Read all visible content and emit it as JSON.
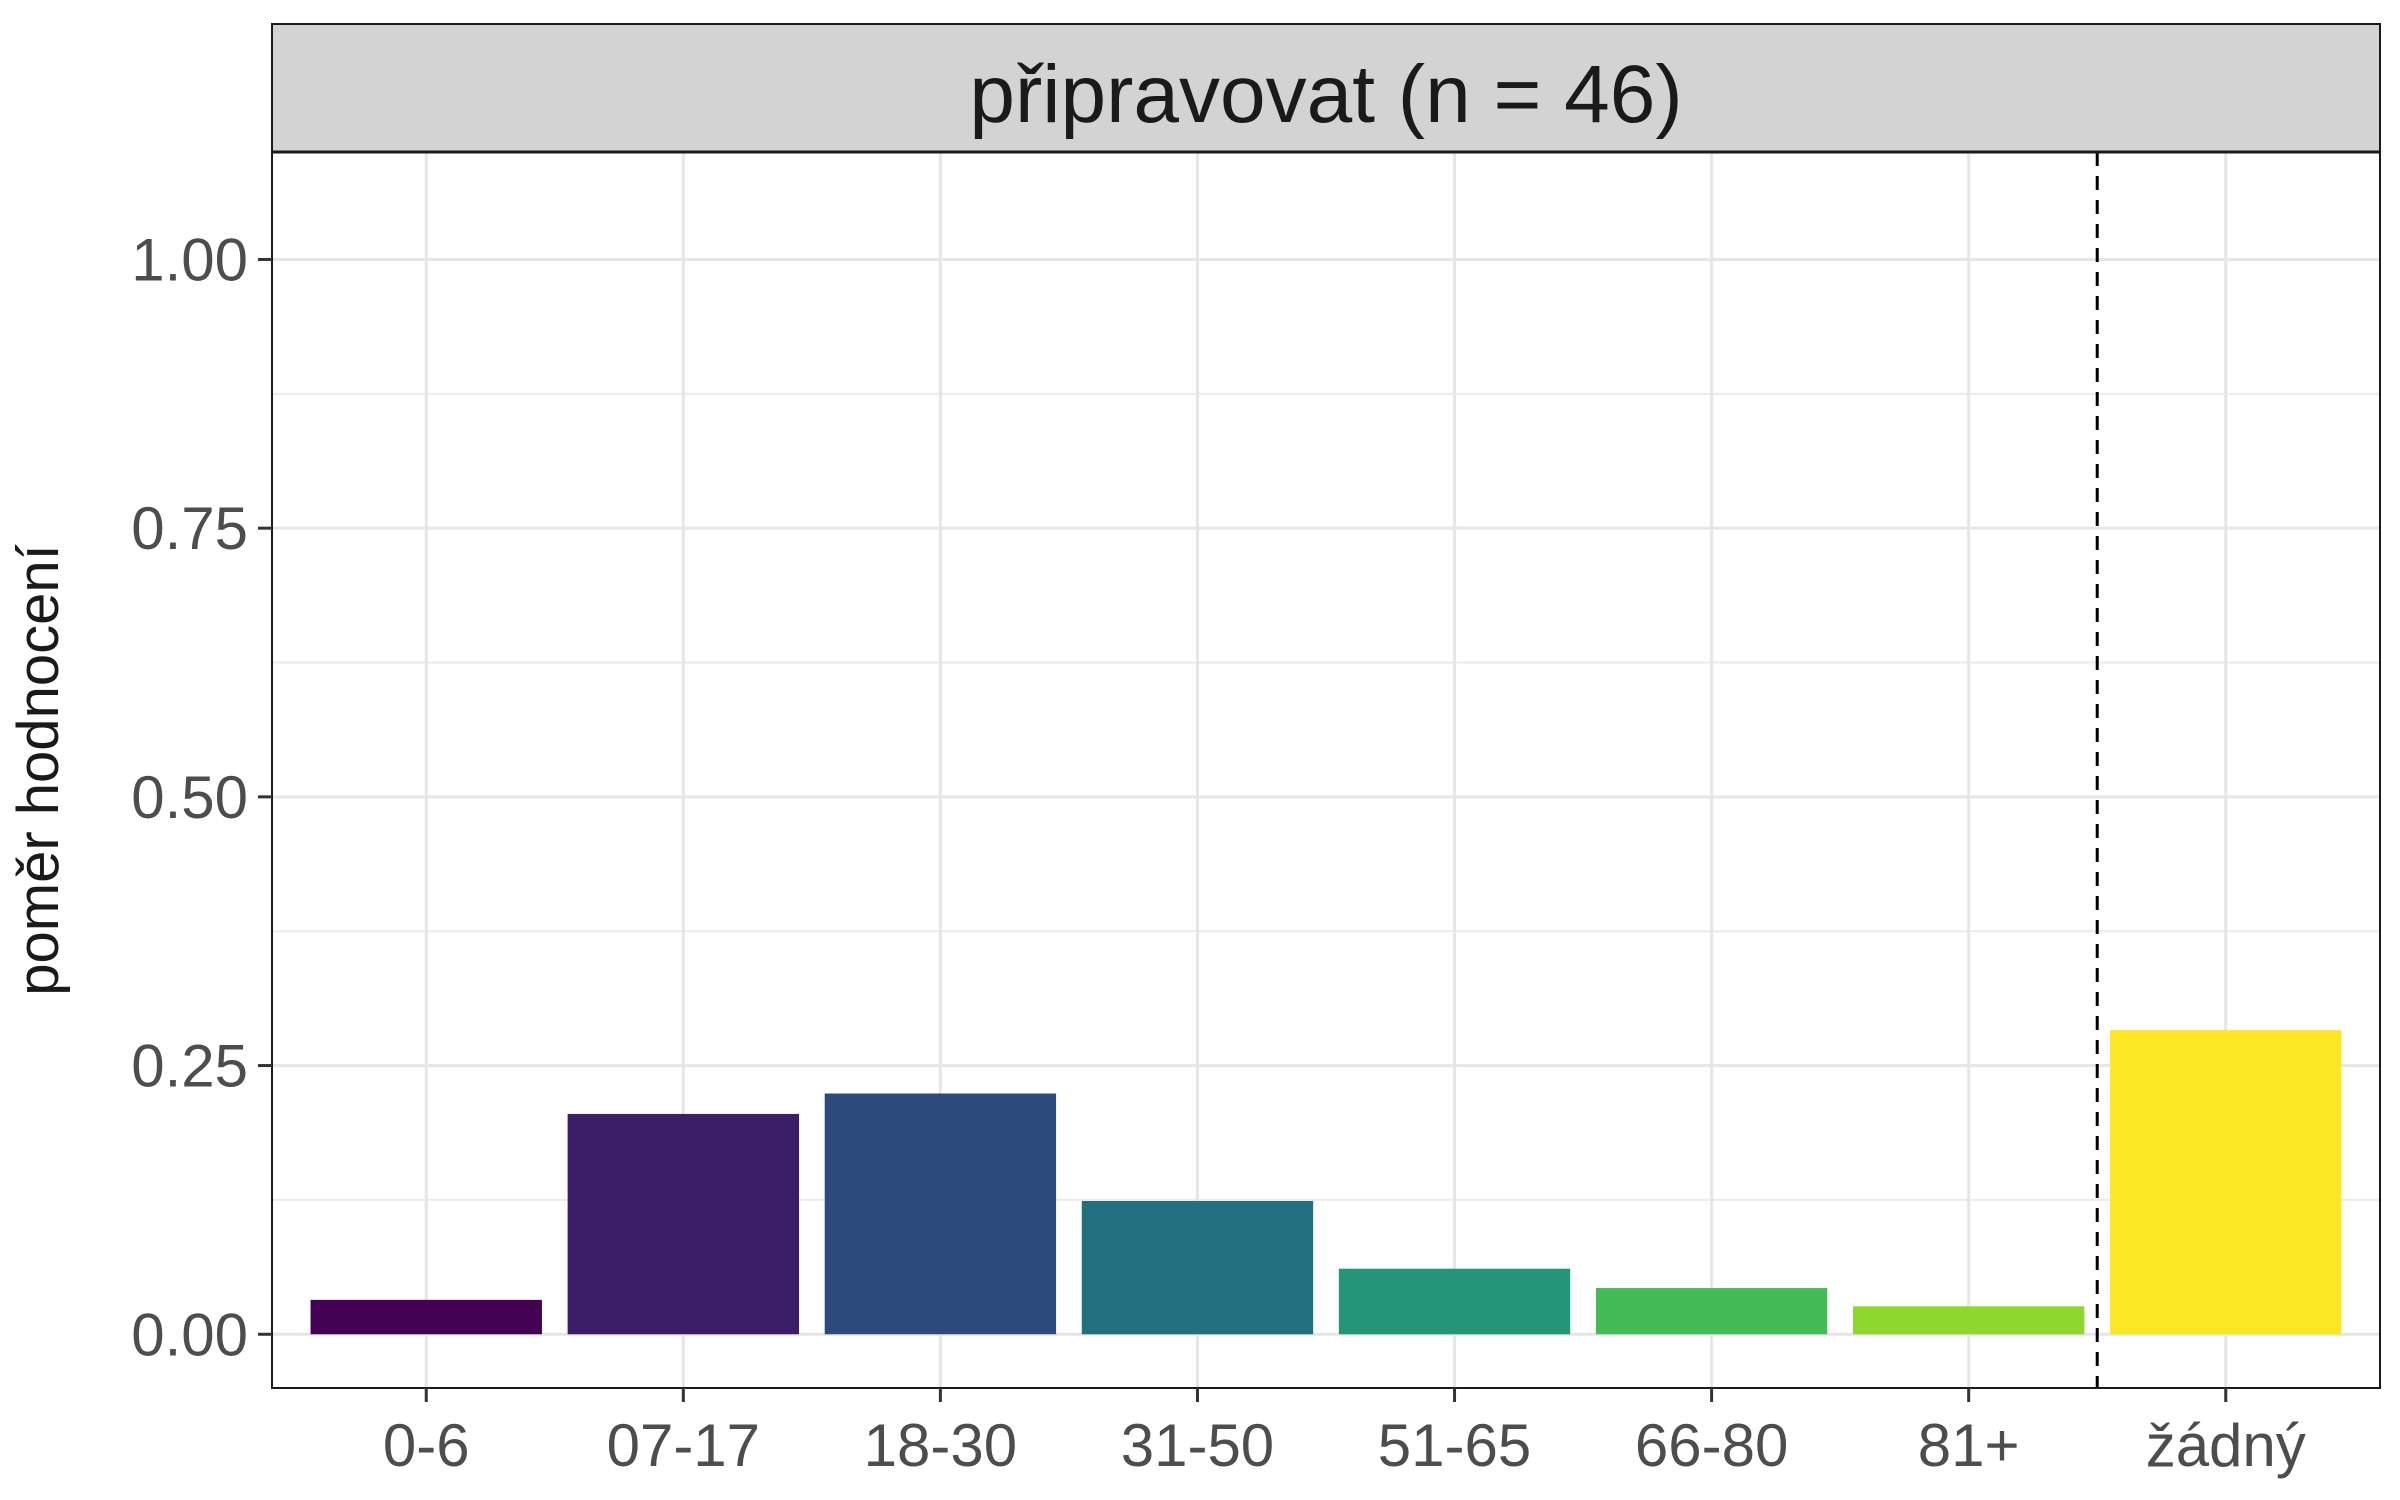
{
  "chart_data": {
    "type": "bar",
    "title": "připravovat (n = 46)",
    "ylabel": "poměr hodnocení",
    "xlabel": "",
    "categories": [
      "0-6",
      "07-17",
      "18-30",
      "31-50",
      "51-65",
      "66-80",
      "81+",
      "žádný"
    ],
    "values": [
      0.032,
      0.205,
      0.224,
      0.124,
      0.061,
      0.043,
      0.026,
      0.283
    ],
    "colors": [
      "#440154",
      "#3A1F68",
      "#2C4A7B",
      "#21707F",
      "#22957A",
      "#44BB57",
      "#8ED72E",
      "#FDE725"
    ],
    "ylim": [
      -0.05,
      1.1
    ],
    "yticks": [
      0,
      0.25,
      0.5,
      0.75,
      1.0
    ],
    "ytick_labels": [
      "0.00",
      "0.25",
      "0.50",
      "0.75",
      "1.00"
    ],
    "grid": true,
    "reference_line": {
      "type": "vertical",
      "style": "dashed",
      "between_categories": [
        "81+",
        "žádný"
      ]
    }
  }
}
